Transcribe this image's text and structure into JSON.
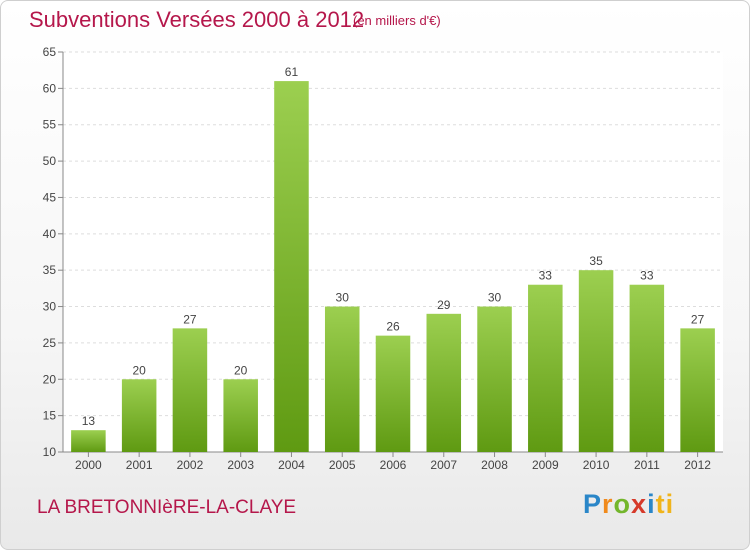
{
  "header": {
    "title": "Subventions Versées 2000 à 2012",
    "subtitle": "(en milliers d'€)"
  },
  "footer": {
    "commune": "LA BRETONNIèRE-LA-CLAYE",
    "brand_letters": [
      "P",
      "r",
      "o",
      "x",
      "i",
      "ti"
    ]
  },
  "colors": {
    "title": "#b5174b",
    "bar_light": "#9ccf50",
    "bar_dark": "#5f9a12"
  },
  "chart_data": {
    "type": "bar",
    "title": "Subventions Versées 2000 à 2012",
    "subtitle": "(en milliers d'€)",
    "categories": [
      "2000",
      "2001",
      "2002",
      "2003",
      "2004",
      "2005",
      "2006",
      "2007",
      "2008",
      "2009",
      "2010",
      "2011",
      "2012"
    ],
    "values": [
      13,
      20,
      27,
      20,
      61,
      30,
      26,
      29,
      30,
      33,
      35,
      33,
      27
    ],
    "ylim": [
      10,
      65
    ],
    "yticks": [
      10,
      15,
      20,
      25,
      30,
      35,
      40,
      45,
      50,
      55,
      60,
      65
    ],
    "grid": true
  }
}
